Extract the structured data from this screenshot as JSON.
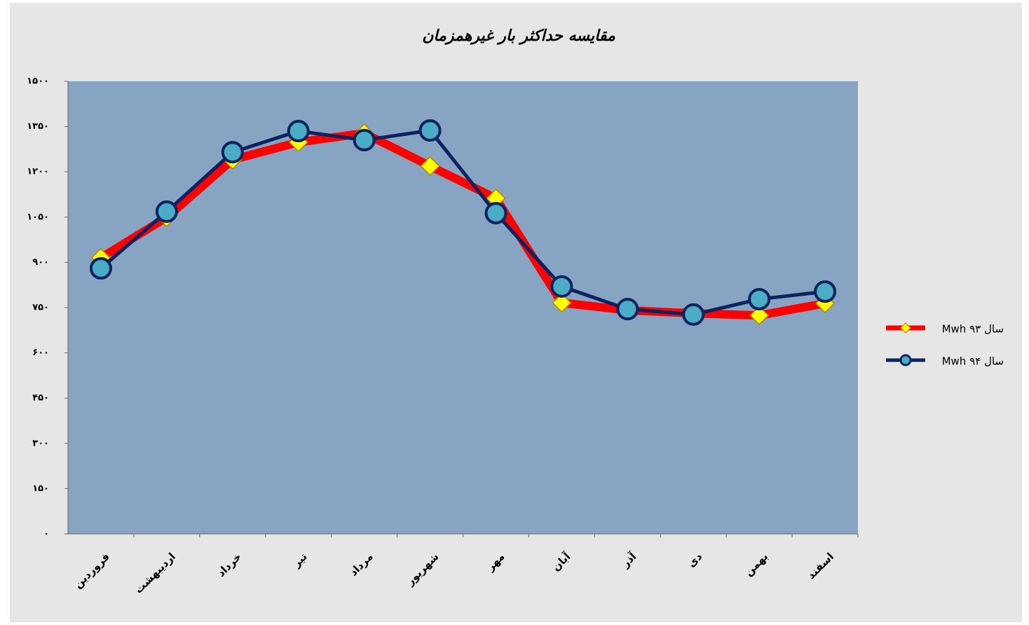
{
  "chart_data": {
    "type": "line",
    "title": "مقایسه حداکثر بار غیرهمزمان",
    "categories": [
      "فروردین",
      "اردیبهشت",
      "خرداد",
      "تیر",
      "مرداد",
      "شهریور",
      "مهر",
      "آبان",
      "آذر",
      "دی",
      "بهمن",
      "اسفند"
    ],
    "series": [
      {
        "name": "سال ۹۳ Mwh",
        "color": "#ff0000",
        "marker_color": "#ffff00",
        "marker": "diamond",
        "values": [
          915,
          1049,
          1240,
          1298,
          1328,
          1219,
          1112,
          766,
          741,
          731,
          724,
          764
        ]
      },
      {
        "name": "سال ۹۴ Mwh",
        "color": "#0d2260",
        "marker_color": "#4bacc6",
        "marker": "circle",
        "values": [
          880,
          1068,
          1265,
          1335,
          1305,
          1337,
          1063,
          820,
          745,
          727,
          778,
          803
        ]
      }
    ],
    "ylim": [
      0,
      1500
    ],
    "yticks": [
      {
        "value": 0,
        "label": "۰"
      },
      {
        "value": 150,
        "label": "۱۵۰"
      },
      {
        "value": 300,
        "label": "۳۰۰"
      },
      {
        "value": 450,
        "label": "۴۵۰"
      },
      {
        "value": 600,
        "label": "۶۰۰"
      },
      {
        "value": 750,
        "label": "۷۵۰"
      },
      {
        "value": 900,
        "label": "۹۰۰"
      },
      {
        "value": 1050,
        "label": "۱۰۵۰"
      },
      {
        "value": 1200,
        "label": "۱۲۰۰"
      },
      {
        "value": 1350,
        "label": "۱۳۵۰"
      },
      {
        "value": 1500,
        "label": "۱۵۰۰"
      }
    ],
    "legend": "right",
    "plot_background": "#87a5c2"
  }
}
